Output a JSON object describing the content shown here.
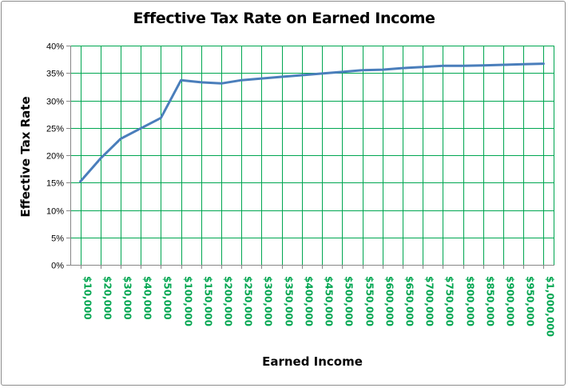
{
  "chart_data": {
    "type": "line",
    "title": "Effective Tax Rate on Earned Income",
    "xlabel": "Earned Income",
    "ylabel": "Effective Tax Rate",
    "ylim": [
      0,
      40
    ],
    "y_ticks": [
      "0%",
      "5%",
      "10%",
      "15%",
      "20%",
      "25%",
      "30%",
      "35%",
      "40%"
    ],
    "categories": [
      "$10,000",
      "$20,000",
      "$30,000",
      "$40,000",
      "$50,000",
      "$100,000",
      "$150,000",
      "$200,000",
      "$250,000",
      "$300,000",
      "$350,000",
      "$400,000",
      "$450,000",
      "$500,000",
      "$550,000",
      "$600,000",
      "$650,000",
      "$700,000",
      "$750,000",
      "$800,000",
      "$850,000",
      "$900,000",
      "$950,000",
      "$1,000,000"
    ],
    "series": [
      {
        "color": "#4a7ebb",
        "values": [
          15.2,
          19.4,
          23.0,
          24.9,
          26.8,
          33.7,
          33.3,
          33.1,
          33.7,
          34.0,
          34.3,
          34.6,
          34.9,
          35.2,
          35.5,
          35.6,
          35.9,
          36.1,
          36.3,
          36.3,
          36.4,
          36.5,
          36.6,
          36.7
        ]
      }
    ],
    "grid": true,
    "legend": "none",
    "colors": {
      "gridline": "#00a651",
      "tick_label": "#00a651",
      "line": "#4a7ebb"
    }
  }
}
